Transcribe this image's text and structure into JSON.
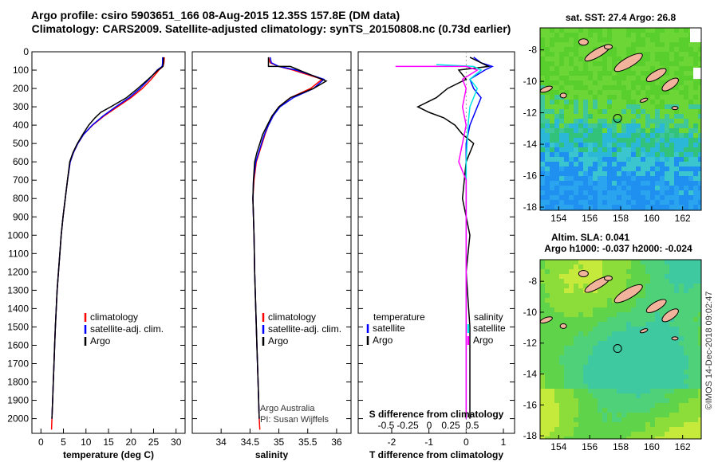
{
  "header": {
    "line1": "Argo profile: csiro 5903651_166 08-Aug-2015 12.35S 157.8E (DM data)",
    "line2": "Climatology: CARS2009. Satellite-adjusted climatology: synTS_20150808.nc (0.73d earlier)"
  },
  "colors": {
    "climatology": "#ff0000",
    "satellite": "#0000ff",
    "argo": "#000000",
    "sal_satellite": "#00e5e5",
    "sal_argo": "#ff00ff"
  },
  "chart_data": [
    {
      "type": "line",
      "id": "temperature",
      "xlabel": "temperature (deg C)",
      "ylabel": "",
      "xlim": [
        -2,
        32
      ],
      "ylim": [
        2080,
        0
      ],
      "xticks": [
        0,
        5,
        10,
        15,
        20,
        25,
        30
      ],
      "yticks": [
        0,
        100,
        200,
        300,
        400,
        500,
        600,
        700,
        800,
        900,
        1000,
        1100,
        1200,
        1300,
        1400,
        1500,
        1600,
        1700,
        1800,
        1900,
        2000
      ],
      "legend": [
        "climatology",
        "satellite-adj. clim.",
        "Argo"
      ],
      "series": [
        {
          "name": "climatology",
          "points": [
            [
              27.4,
              30
            ],
            [
              27.3,
              60
            ],
            [
              27.1,
              80
            ],
            [
              26.2,
              100
            ],
            [
              24.5,
              150
            ],
            [
              22.5,
              200
            ],
            [
              20,
              250
            ],
            [
              17,
              300
            ],
            [
              14,
              350
            ],
            [
              11.5,
              400
            ],
            [
              9.5,
              450
            ],
            [
              8.2,
              500
            ],
            [
              7.2,
              550
            ],
            [
              6.5,
              600
            ],
            [
              5.9,
              700
            ],
            [
              5.4,
              800
            ],
            [
              4.9,
              900
            ],
            [
              4.5,
              1000
            ],
            [
              4.2,
              1100
            ],
            [
              3.9,
              1200
            ],
            [
              3.6,
              1300
            ],
            [
              3.4,
              1400
            ],
            [
              3.2,
              1500
            ],
            [
              3.05,
              1600
            ],
            [
              2.9,
              1700
            ],
            [
              2.75,
              1800
            ],
            [
              2.6,
              1900
            ],
            [
              2.45,
              2000
            ],
            [
              2.35,
              2060
            ]
          ]
        },
        {
          "name": "satellite-adj. clim.",
          "points": [
            [
              27.0,
              30
            ],
            [
              27.0,
              60
            ],
            [
              26.9,
              80
            ],
            [
              25.8,
              100
            ],
            [
              24,
              150
            ],
            [
              22,
              200
            ],
            [
              19.6,
              250
            ],
            [
              16.6,
              300
            ],
            [
              13.8,
              350
            ],
            [
              11.4,
              400
            ],
            [
              9.5,
              450
            ],
            [
              8.2,
              500
            ],
            [
              7.2,
              550
            ],
            [
              6.5,
              600
            ],
            [
              5.9,
              700
            ],
            [
              5.4,
              800
            ],
            [
              4.9,
              900
            ],
            [
              4.5,
              1000
            ],
            [
              4.2,
              1100
            ],
            [
              3.9,
              1200
            ],
            [
              3.6,
              1300
            ],
            [
              3.4,
              1400
            ],
            [
              3.2,
              1500
            ],
            [
              3.05,
              1600
            ],
            [
              2.9,
              1700
            ],
            [
              2.75,
              1800
            ],
            [
              2.6,
              1900
            ],
            [
              2.45,
              2000
            ]
          ]
        },
        {
          "name": "Argo",
          "points": [
            [
              27.2,
              30
            ],
            [
              27.2,
              50
            ],
            [
              27.1,
              80
            ],
            [
              26,
              100
            ],
            [
              23.8,
              150
            ],
            [
              21.5,
              200
            ],
            [
              19,
              250
            ],
            [
              15.5,
              300
            ],
            [
              13.3,
              330
            ],
            [
              12,
              360
            ],
            [
              10.6,
              400
            ],
            [
              9.3,
              450
            ],
            [
              8.1,
              500
            ],
            [
              7.1,
              550
            ],
            [
              6.4,
              600
            ],
            [
              5.9,
              700
            ],
            [
              5.4,
              800
            ],
            [
              4.9,
              900
            ],
            [
              4.5,
              1000
            ],
            [
              4.2,
              1100
            ],
            [
              3.9,
              1200
            ],
            [
              3.6,
              1300
            ],
            [
              3.4,
              1400
            ],
            [
              3.2,
              1500
            ],
            [
              3.05,
              1600
            ],
            [
              2.9,
              1700
            ],
            [
              2.75,
              1800
            ],
            [
              2.6,
              1900
            ],
            [
              2.45,
              2000
            ]
          ]
        }
      ]
    },
    {
      "type": "line",
      "id": "salinity",
      "xlabel": "salinity",
      "ylabel": "",
      "xlim": [
        33.5,
        36.25
      ],
      "xticks": [
        34,
        34.5,
        35,
        35.5,
        36
      ],
      "legend": [
        "climatology",
        "satellite-adj. clim.",
        "Argo"
      ],
      "credit_line1": "Argo Australia",
      "credit_line2": "PI: Susan Wijffels",
      "series": [
        {
          "name": "climatology",
          "points": [
            [
              34.82,
              30
            ],
            [
              34.85,
              60
            ],
            [
              35,
              80
            ],
            [
              35.25,
              100
            ],
            [
              35.75,
              150
            ],
            [
              35.55,
              200
            ],
            [
              35.2,
              250
            ],
            [
              35,
              300
            ],
            [
              34.9,
              350
            ],
            [
              34.82,
              400
            ],
            [
              34.76,
              450
            ],
            [
              34.71,
              500
            ],
            [
              34.66,
              550
            ],
            [
              34.61,
              600
            ],
            [
              34.57,
              700
            ],
            [
              34.55,
              800
            ],
            [
              34.56,
              900
            ],
            [
              34.57,
              1000
            ],
            [
              34.58,
              1200
            ],
            [
              34.6,
              1400
            ],
            [
              34.62,
              1600
            ],
            [
              34.64,
              1800
            ],
            [
              34.66,
              2000
            ],
            [
              34.67,
              2060
            ]
          ]
        },
        {
          "name": "satellite-adj. clim.",
          "points": [
            [
              34.85,
              30
            ],
            [
              34.87,
              60
            ],
            [
              35,
              80
            ],
            [
              35.3,
              100
            ],
            [
              35.78,
              150
            ],
            [
              35.6,
              200
            ],
            [
              35.25,
              250
            ],
            [
              35.02,
              300
            ],
            [
              34.9,
              350
            ],
            [
              34.82,
              400
            ],
            [
              34.75,
              450
            ],
            [
              34.7,
              500
            ],
            [
              34.65,
              550
            ],
            [
              34.6,
              600
            ],
            [
              34.56,
              700
            ],
            [
              34.55,
              800
            ],
            [
              34.56,
              900
            ],
            [
              34.57,
              1000
            ],
            [
              34.58,
              1200
            ],
            [
              34.6,
              1400
            ],
            [
              34.62,
              1600
            ],
            [
              34.64,
              1800
            ],
            [
              34.66,
              2000
            ]
          ]
        },
        {
          "name": "Argo",
          "points": [
            [
              34.82,
              30
            ],
            [
              34.82,
              60
            ],
            [
              34.82,
              80
            ],
            [
              35.2,
              80
            ],
            [
              35.35,
              100
            ],
            [
              35.82,
              160
            ],
            [
              35.6,
              200
            ],
            [
              35.2,
              250
            ],
            [
              35,
              300
            ],
            [
              34.88,
              350
            ],
            [
              34.8,
              400
            ],
            [
              34.72,
              450
            ],
            [
              34.67,
              500
            ],
            [
              34.62,
              550
            ],
            [
              34.58,
              600
            ],
            [
              34.56,
              700
            ],
            [
              34.55,
              800
            ],
            [
              34.56,
              900
            ],
            [
              34.57,
              1000
            ],
            [
              34.58,
              1200
            ],
            [
              34.6,
              1400
            ],
            [
              34.62,
              1600
            ],
            [
              34.64,
              1800
            ],
            [
              34.66,
              2000
            ]
          ]
        }
      ]
    },
    {
      "type": "line",
      "id": "difference",
      "xlabel": "T difference from climatology",
      "xlabel_top": "S difference from climatology",
      "xlim": [
        -2.9,
        1.3
      ],
      "xticks": [
        -2,
        -1,
        0,
        1
      ],
      "xticks_top": [
        "-0.5",
        "-0.25",
        "0",
        "0.25",
        "0.5"
      ],
      "legend_left_title": "temperature",
      "legend_right_title": "salinity",
      "legend_left": [
        "satellite",
        "Argo"
      ],
      "legend_right": [
        "satellite",
        "Argo"
      ],
      "series": [
        {
          "name": "T satellite",
          "points": [
            [
              0.2,
              30
            ],
            [
              0.4,
              60
            ],
            [
              0.7,
              80
            ],
            [
              0.5,
              100
            ],
            [
              0.1,
              150
            ],
            [
              0.2,
              200
            ],
            [
              0.4,
              250
            ],
            [
              0.3,
              300
            ],
            [
              0.1,
              400
            ],
            [
              0,
              500
            ],
            [
              0,
              800
            ],
            [
              0,
              1200
            ],
            [
              0,
              2000
            ]
          ]
        },
        {
          "name": "T Argo",
          "points": [
            [
              0.1,
              30
            ],
            [
              0.3,
              50
            ],
            [
              0.6,
              80
            ],
            [
              -0.2,
              100
            ],
            [
              0,
              150
            ],
            [
              -0.5,
              200
            ],
            [
              -0.8,
              250
            ],
            [
              -1.3,
              300
            ],
            [
              -1,
              330
            ],
            [
              -0.6,
              360
            ],
            [
              -0.3,
              400
            ],
            [
              -0.1,
              450
            ],
            [
              0.2,
              500
            ],
            [
              0,
              600
            ],
            [
              -0.1,
              800
            ],
            [
              0.1,
              1000
            ],
            [
              0,
              1200
            ],
            [
              0.1,
              1500
            ],
            [
              0.1,
              1700
            ],
            [
              0.1,
              2000
            ]
          ]
        },
        {
          "name": "S satellite",
          "points": [
            [
              -0.8,
              70
            ],
            [
              0.2,
              80
            ],
            [
              0.4,
              100
            ],
            [
              0.1,
              150
            ],
            [
              0.3,
              200
            ],
            [
              0.1,
              300
            ],
            [
              0.05,
              400
            ],
            [
              0,
              600
            ],
            [
              0,
              1000
            ],
            [
              0,
              2000
            ]
          ]
        },
        {
          "name": "S Argo",
          "points": [
            [
              -1.9,
              80
            ],
            [
              0,
              80
            ],
            [
              0.3,
              100
            ],
            [
              -0.1,
              150
            ],
            [
              0,
              200
            ],
            [
              -0.1,
              300
            ],
            [
              0,
              400
            ],
            [
              -0.1,
              500
            ],
            [
              -0.2,
              600
            ],
            [
              0,
              700
            ],
            [
              0,
              2000
            ]
          ]
        }
      ]
    },
    {
      "type": "heatmap",
      "id": "sst_map",
      "title": "sat. SST: 27.4 Argo: 26.8",
      "xticks": [
        "154",
        "156",
        "158",
        "160",
        "162"
      ],
      "yticks": [
        "-8",
        "-10",
        "-12",
        "-14",
        "-16",
        "-18"
      ],
      "lon_range": [
        152.8,
        163.2
      ],
      "lat_range": [
        -18.2,
        -6.6
      ],
      "float_lon": 157.8,
      "float_lat": -12.35
    },
    {
      "type": "heatmap",
      "id": "sla_map",
      "title_line1": "Altim. SLA: 0.041",
      "title_line2": "Argo h1000: -0.037 h2000: -0.024",
      "xticks": [
        "154",
        "156",
        "158",
        "160",
        "162"
      ],
      "yticks": [
        "-8",
        "-10",
        "-12",
        "-14",
        "-16",
        "-18"
      ],
      "lon_range": [
        152.8,
        163.2
      ],
      "lat_range": [
        -18.2,
        -6.6
      ],
      "float_lon": 157.8,
      "float_lat": -12.35
    }
  ],
  "footer_credit": "©IMOS 14-Dec-2018 09:02:47"
}
